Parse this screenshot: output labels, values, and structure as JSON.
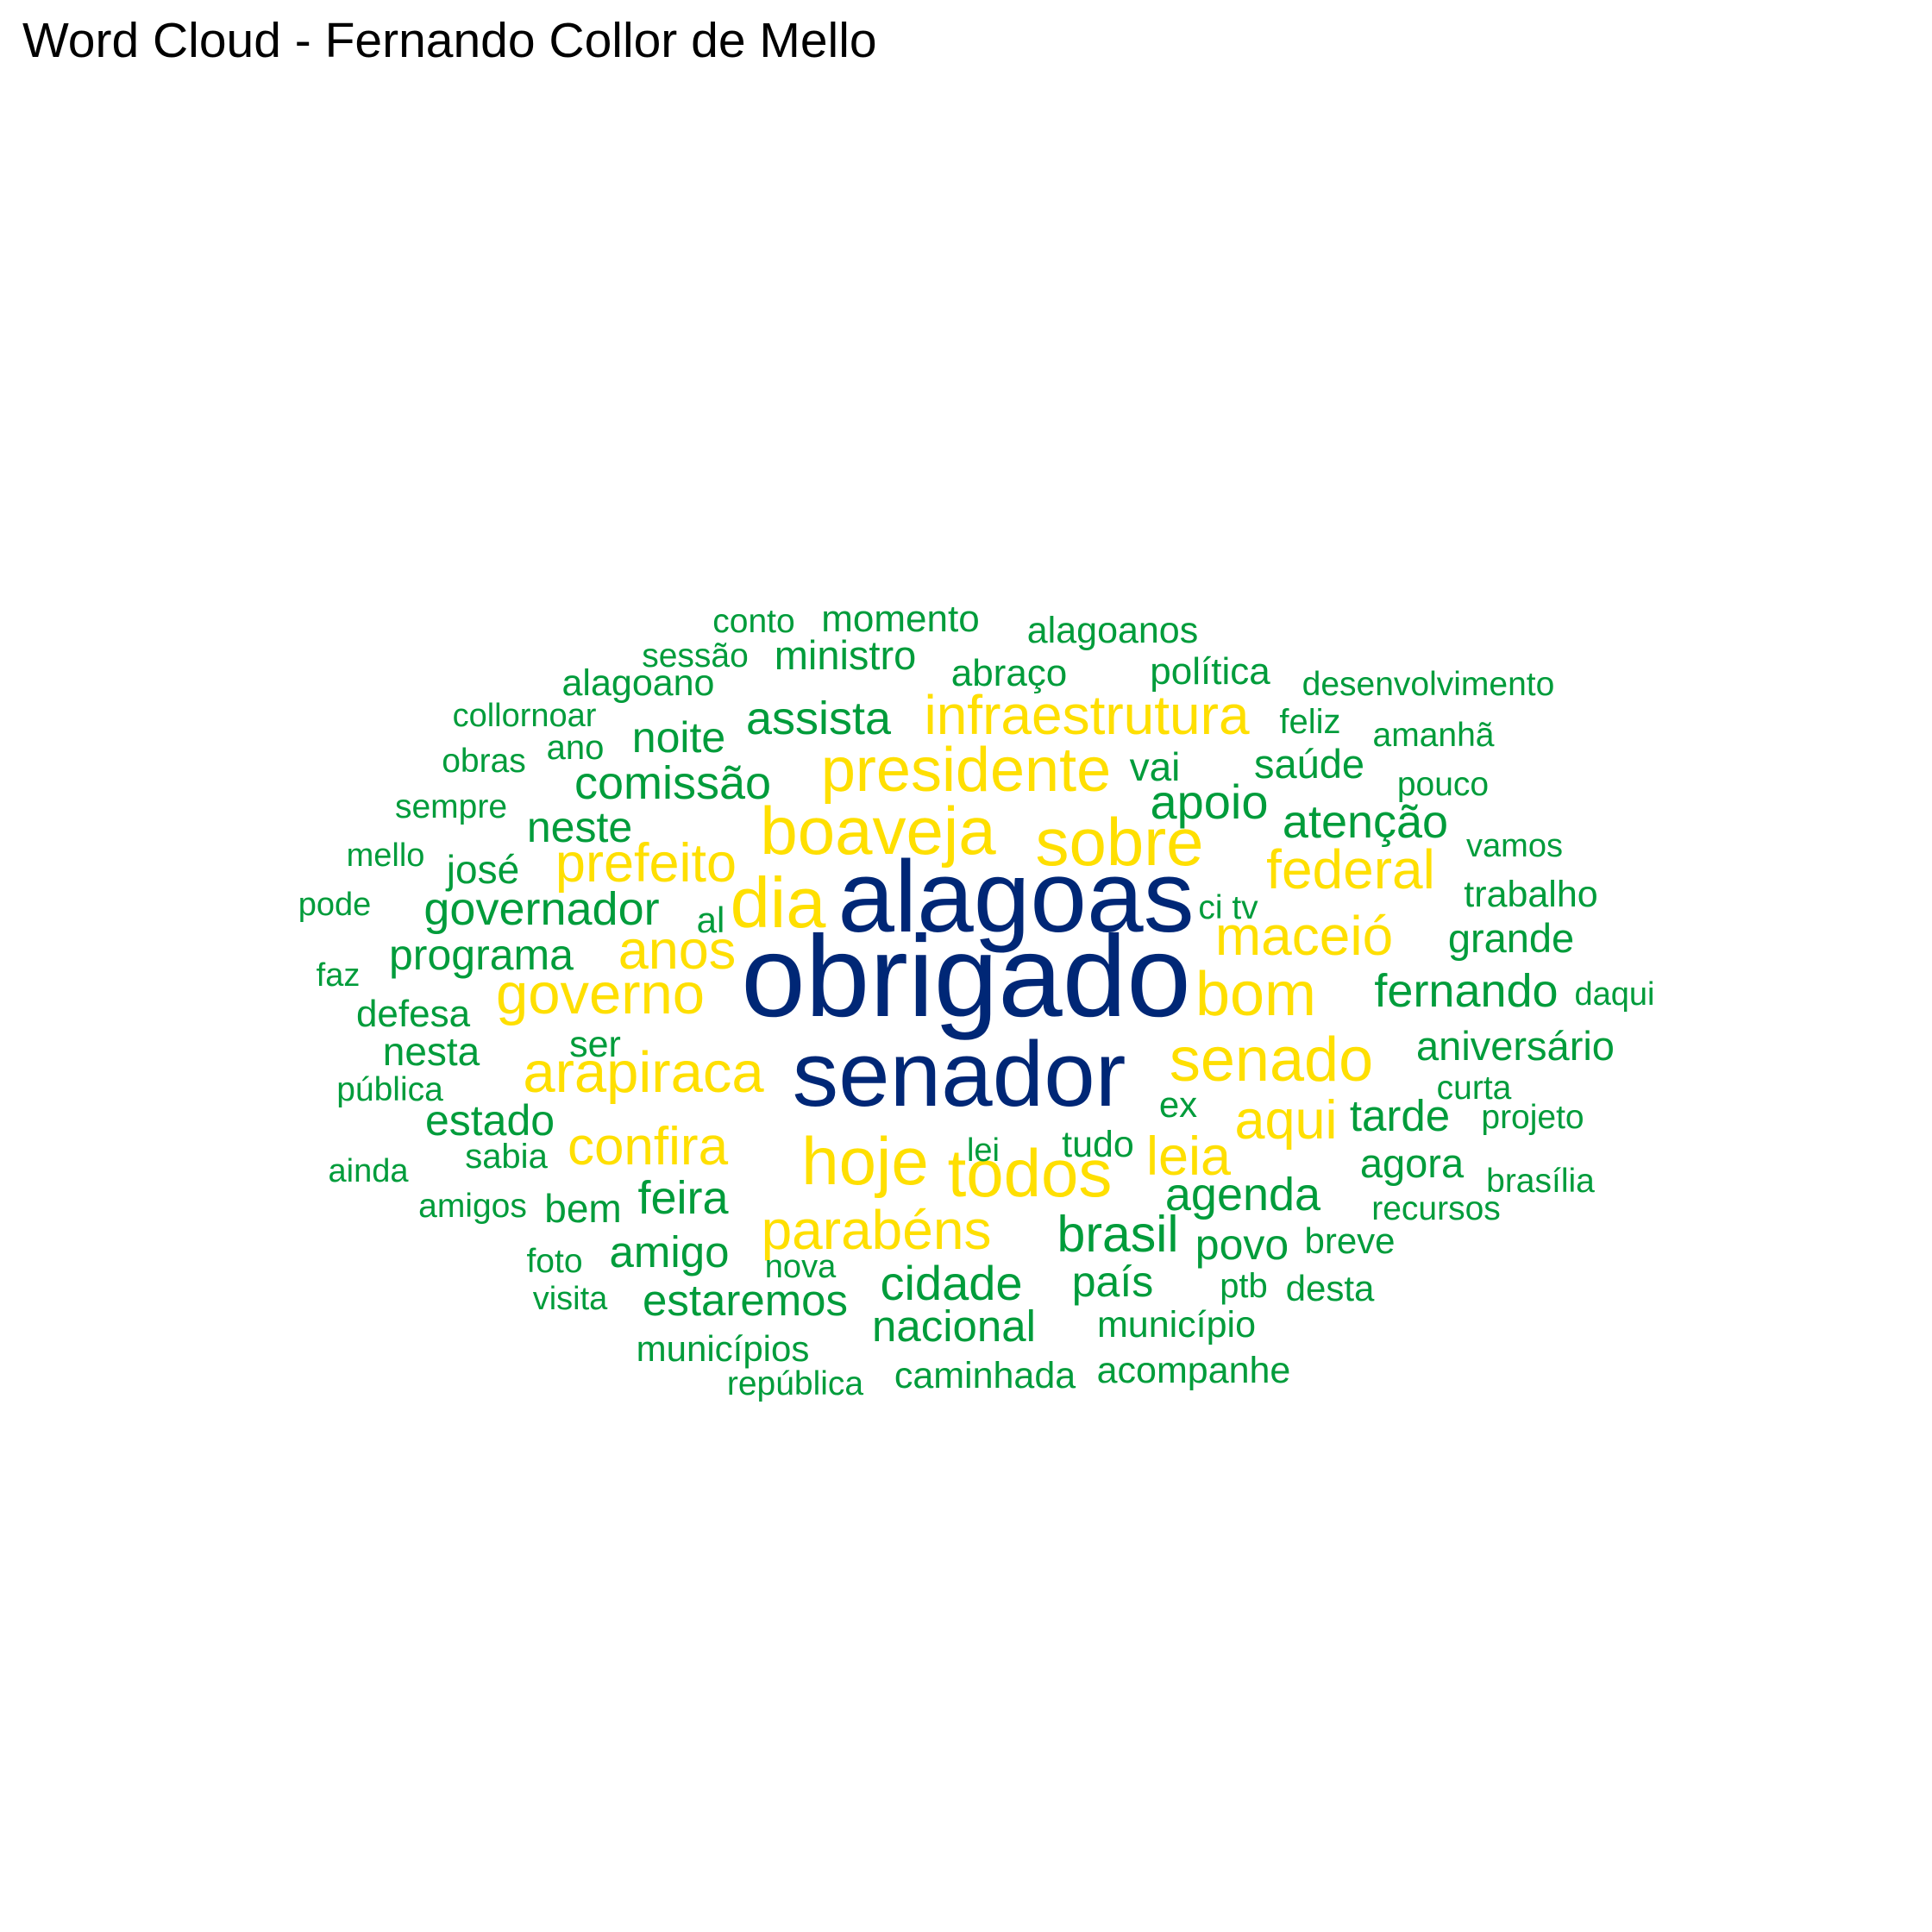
{
  "chart_data": {
    "type": "wordcloud",
    "title": "Word Cloud - Fernando Collor de Mello",
    "colors": {
      "top": "#002776",
      "mid": "#FFDF00",
      "low": "#009C3B"
    },
    "words": [
      {
        "text": "obrigado",
        "weight": 100,
        "tier": "top"
      },
      {
        "text": "alagoas",
        "weight": 88,
        "tier": "top"
      },
      {
        "text": "senador",
        "weight": 80,
        "tier": "top"
      },
      {
        "text": "dia",
        "weight": 62,
        "tier": "mid"
      },
      {
        "text": "sobre",
        "weight": 58,
        "tier": "mid"
      },
      {
        "text": "boaveja",
        "weight": 58,
        "tier": "mid"
      },
      {
        "text": "hoje",
        "weight": 58,
        "tier": "mid"
      },
      {
        "text": "todos",
        "weight": 58,
        "tier": "mid"
      },
      {
        "text": "senado",
        "weight": 54,
        "tier": "mid"
      },
      {
        "text": "bom",
        "weight": 54,
        "tier": "mid"
      },
      {
        "text": "presidente",
        "weight": 54,
        "tier": "mid"
      },
      {
        "text": "governo",
        "weight": 50,
        "tier": "mid"
      },
      {
        "text": "arapiraca",
        "weight": 50,
        "tier": "mid"
      },
      {
        "text": "infraestrutura",
        "weight": 48,
        "tier": "mid"
      },
      {
        "text": "maceió",
        "weight": 48,
        "tier": "mid"
      },
      {
        "text": "federal",
        "weight": 48,
        "tier": "mid"
      },
      {
        "text": "parabéns",
        "weight": 48,
        "tier": "mid"
      },
      {
        "text": "prefeito",
        "weight": 47,
        "tier": "mid"
      },
      {
        "text": "anos",
        "weight": 47,
        "tier": "mid"
      },
      {
        "text": "aqui",
        "weight": 47,
        "tier": "mid"
      },
      {
        "text": "leia",
        "weight": 47,
        "tier": "mid"
      },
      {
        "text": "confira",
        "weight": 46,
        "tier": "mid"
      },
      {
        "text": "brasil",
        "weight": 44,
        "tier": "low"
      },
      {
        "text": "cidade",
        "weight": 42,
        "tier": "low"
      },
      {
        "text": "apoio",
        "weight": 42,
        "tier": "low"
      },
      {
        "text": "governador",
        "weight": 40,
        "tier": "low"
      },
      {
        "text": "comissão",
        "weight": 40,
        "tier": "low"
      },
      {
        "text": "feira",
        "weight": 40,
        "tier": "low"
      },
      {
        "text": "agenda",
        "weight": 40,
        "tier": "low"
      },
      {
        "text": "atenção",
        "weight": 40,
        "tier": "low"
      },
      {
        "text": "fernando",
        "weight": 40,
        "tier": "low"
      },
      {
        "text": "assista",
        "weight": 40,
        "tier": "low"
      },
      {
        "text": "tarde",
        "weight": 38,
        "tier": "low"
      },
      {
        "text": "nacional",
        "weight": 38,
        "tier": "low"
      },
      {
        "text": "estaremos",
        "weight": 38,
        "tier": "low"
      },
      {
        "text": "amigo",
        "weight": 38,
        "tier": "low"
      },
      {
        "text": "programa",
        "weight": 37,
        "tier": "low"
      },
      {
        "text": "estado",
        "weight": 37,
        "tier": "low"
      },
      {
        "text": "noite",
        "weight": 37,
        "tier": "low"
      },
      {
        "text": "neste",
        "weight": 37,
        "tier": "low"
      },
      {
        "text": "país",
        "weight": 37,
        "tier": "low"
      },
      {
        "text": "povo",
        "weight": 37,
        "tier": "low"
      },
      {
        "text": "saúde",
        "weight": 35,
        "tier": "low"
      },
      {
        "text": "grande",
        "weight": 35,
        "tier": "low"
      },
      {
        "text": "aniversário",
        "weight": 35,
        "tier": "low"
      },
      {
        "text": "agora",
        "weight": 35,
        "tier": "low"
      },
      {
        "text": "ministro",
        "weight": 35,
        "tier": "low"
      },
      {
        "text": "momento",
        "weight": 33,
        "tier": "low"
      },
      {
        "text": "abraço",
        "weight": 33,
        "tier": "low"
      },
      {
        "text": "política",
        "weight": 33,
        "tier": "low"
      },
      {
        "text": "alagoanos",
        "weight": 32,
        "tier": "low"
      },
      {
        "text": "alagoano",
        "weight": 32,
        "tier": "low"
      },
      {
        "text": "trabalho",
        "weight": 32,
        "tier": "low"
      },
      {
        "text": "município",
        "weight": 32,
        "tier": "low"
      },
      {
        "text": "caminhada",
        "weight": 32,
        "tier": "low"
      },
      {
        "text": "acompanhe",
        "weight": 32,
        "tier": "low"
      },
      {
        "text": "nesta",
        "weight": 34,
        "tier": "low"
      },
      {
        "text": "defesa",
        "weight": 33,
        "tier": "low"
      },
      {
        "text": "josé",
        "weight": 34,
        "tier": "low"
      },
      {
        "text": "bem",
        "weight": 34,
        "tier": "low"
      },
      {
        "text": "vai",
        "weight": 34,
        "tier": "low"
      },
      {
        "text": "desta",
        "weight": 31,
        "tier": "low"
      },
      {
        "text": "breve",
        "weight": 31,
        "tier": "low"
      },
      {
        "text": "municípios",
        "weight": 31,
        "tier": "low"
      },
      {
        "text": "ser",
        "weight": 32,
        "tier": "low"
      },
      {
        "text": "tudo",
        "weight": 32,
        "tier": "low"
      },
      {
        "text": "ex",
        "weight": 31,
        "tier": "low"
      },
      {
        "text": "al",
        "weight": 31,
        "tier": "low"
      },
      {
        "text": "sabia",
        "weight": 30,
        "tier": "low"
      },
      {
        "text": "ano",
        "weight": 30,
        "tier": "low"
      },
      {
        "text": "feliz",
        "weight": 30,
        "tier": "low"
      },
      {
        "text": "ptb",
        "weight": 30,
        "tier": "low"
      },
      {
        "text": "ci tv",
        "weight": 29,
        "tier": "low"
      },
      {
        "text": "república",
        "weight": 29,
        "tier": "low"
      },
      {
        "text": "desenvolvimento",
        "weight": 29,
        "tier": "low"
      },
      {
        "text": "amanhã",
        "weight": 29,
        "tier": "low"
      },
      {
        "text": "sessão",
        "weight": 29,
        "tier": "low"
      },
      {
        "text": "conto",
        "weight": 29,
        "tier": "low"
      },
      {
        "text": "obras",
        "weight": 29,
        "tier": "low"
      },
      {
        "text": "sempre",
        "weight": 29,
        "tier": "low"
      },
      {
        "text": "pública",
        "weight": 29,
        "tier": "low"
      },
      {
        "text": "curta",
        "weight": 29,
        "tier": "low"
      },
      {
        "text": "projeto",
        "weight": 29,
        "tier": "low"
      },
      {
        "text": "brasília",
        "weight": 29,
        "tier": "low"
      },
      {
        "text": "recursos",
        "weight": 29,
        "tier": "low"
      },
      {
        "text": "pouco",
        "weight": 29,
        "tier": "low"
      },
      {
        "text": "vamos",
        "weight": 28,
        "tier": "low"
      },
      {
        "text": "collornoar",
        "weight": 28,
        "tier": "low"
      },
      {
        "text": "mello",
        "weight": 28,
        "tier": "low"
      },
      {
        "text": "pode",
        "weight": 28,
        "tier": "low"
      },
      {
        "text": "faz",
        "weight": 28,
        "tier": "low"
      },
      {
        "text": "daqui",
        "weight": 28,
        "tier": "low"
      },
      {
        "text": "ainda",
        "weight": 28,
        "tier": "low"
      },
      {
        "text": "amigos",
        "weight": 29,
        "tier": "low"
      },
      {
        "text": "foto",
        "weight": 29,
        "tier": "low"
      },
      {
        "text": "visita",
        "weight": 28,
        "tier": "low"
      },
      {
        "text": "nova",
        "weight": 28,
        "tier": "low"
      },
      {
        "text": "lei",
        "weight": 28,
        "tier": "low"
      }
    ]
  }
}
